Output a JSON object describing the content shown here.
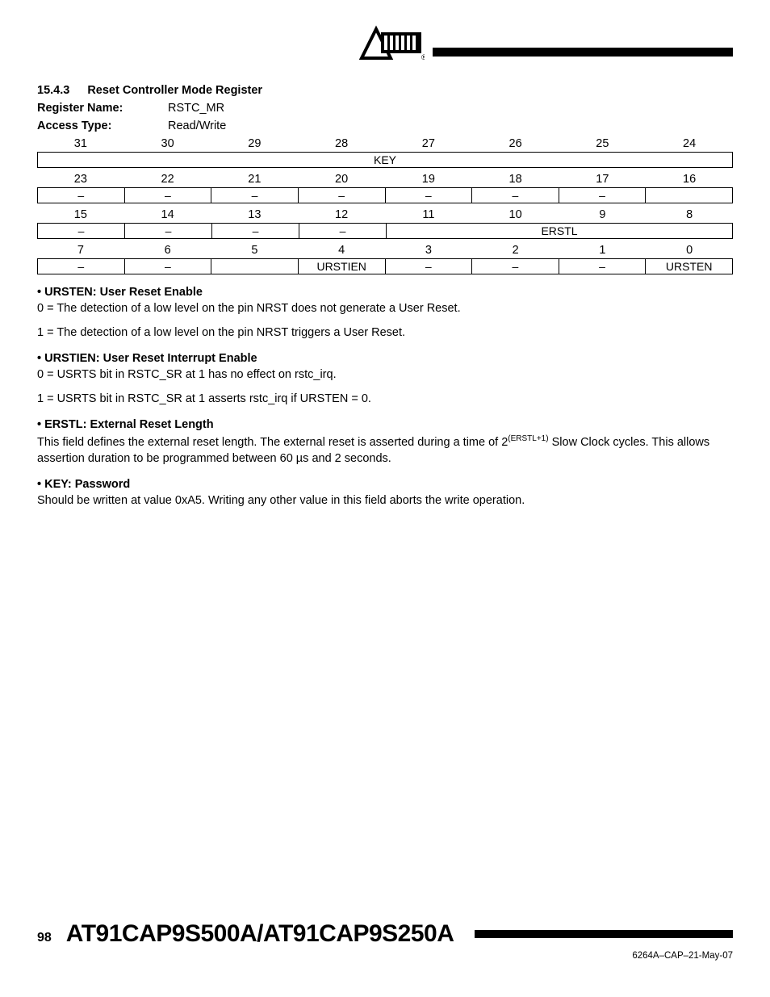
{
  "section": {
    "num": "15.4.3",
    "title": "Reset Controller Mode Register"
  },
  "meta": {
    "regname_label": "Register Name:",
    "regname": "RSTC_MR",
    "access_label": "Access Type:",
    "access": "Read/Write"
  },
  "bitrows": [
    {
      "nums": [
        "31",
        "30",
        "29",
        "28",
        "27",
        "26",
        "25",
        "24"
      ],
      "cells": [
        {
          "t": "KEY",
          "span": 8
        }
      ]
    },
    {
      "nums": [
        "23",
        "22",
        "21",
        "20",
        "19",
        "18",
        "17",
        "16"
      ],
      "cells": [
        {
          "t": "–"
        },
        {
          "t": "–"
        },
        {
          "t": "–"
        },
        {
          "t": "–"
        },
        {
          "t": "–"
        },
        {
          "t": "–"
        },
        {
          "t": "–"
        },
        {
          "t": ""
        }
      ]
    },
    {
      "nums": [
        "15",
        "14",
        "13",
        "12",
        "11",
        "10",
        "9",
        "8"
      ],
      "cells": [
        {
          "t": "–"
        },
        {
          "t": "–"
        },
        {
          "t": "–"
        },
        {
          "t": "–"
        },
        {
          "t": "ERSTL",
          "span": 4
        }
      ]
    },
    {
      "nums": [
        "7",
        "6",
        "5",
        "4",
        "3",
        "2",
        "1",
        "0"
      ],
      "cells": [
        {
          "t": "–"
        },
        {
          "t": "–"
        },
        {
          "t": ""
        },
        {
          "t": "URSTIEN"
        },
        {
          "t": "–"
        },
        {
          "t": "–"
        },
        {
          "t": "–"
        },
        {
          "t": "URSTEN"
        }
      ]
    }
  ],
  "fields": [
    {
      "head": "URSTEN: User Reset Enable",
      "paras": [
        "0 = The detection of a low level on the pin NRST does not generate a User Reset.",
        "1 = The detection of a low level on the pin NRST triggers a User Reset."
      ]
    },
    {
      "head": "URSTIEN: User Reset Interrupt Enable",
      "paras": [
        "0 = USRTS bit in RSTC_SR at 1 has no effect on rstc_irq.",
        "1 = USRTS bit in RSTC_SR at 1 asserts rstc_irq if URSTEN = 0."
      ]
    },
    {
      "head": "ERSTL: External Reset Length",
      "paras_html": [
        "This field defines the external reset length. The external reset is asserted during a time of 2<sup>(ERSTL+1)</sup> Slow Clock cycles. This allows assertion duration to be programmed between 60 µs and 2 seconds."
      ]
    },
    {
      "head": "KEY: Password",
      "paras": [
        "Should be written at value 0xA5. Writing any other value in this field aborts the write operation."
      ]
    }
  ],
  "footer": {
    "page": "98",
    "product": "AT91CAP9S500A/AT91CAP9S250A",
    "docid": "6264A–CAP–21-May-07"
  }
}
